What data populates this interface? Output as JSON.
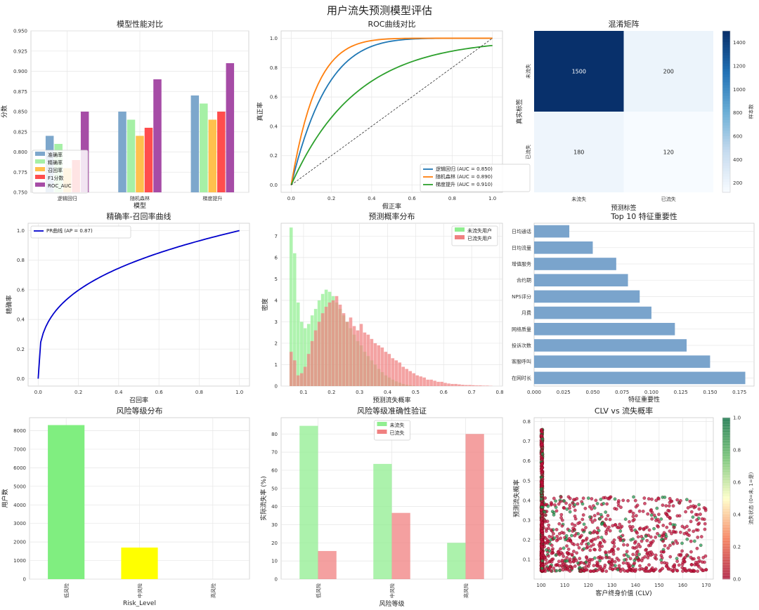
{
  "suptitle": "用户流失预测模型评估",
  "colors": {
    "lr": "#1f77b4",
    "rf": "#ff7f0e",
    "gb": "#2ca02c",
    "accuracy": "#7da7cc",
    "precision": "#a6f0a6",
    "recall": "#ffc04d",
    "f1": "#ff4d4d",
    "rocauc": "#a64ca6",
    "pr": "#0000cc",
    "hist_green": "#90ee90",
    "hist_red": "#f08080",
    "barh": "#7aa4cc",
    "cmap_low": "#f7fbff",
    "cmap_high": "#08306b"
  },
  "chart_data": [
    {
      "id": "model-performance",
      "type": "bar",
      "title": "模型性能对比",
      "xlabel": "模型",
      "ylabel": "分数",
      "categories": [
        "逻辑回归",
        "随机森林",
        "梯度提升"
      ],
      "series": [
        {
          "name": "准确率",
          "color_key": "accuracy",
          "values": [
            0.82,
            0.85,
            0.87
          ]
        },
        {
          "name": "精确率",
          "color_key": "precision",
          "values": [
            0.81,
            0.84,
            0.86
          ]
        },
        {
          "name": "召回率",
          "color_key": "recall",
          "values": [
            0.78,
            0.82,
            0.84
          ]
        },
        {
          "name": "F1分数",
          "color_key": "f1",
          "values": [
            0.79,
            0.83,
            0.85
          ]
        },
        {
          "name": "ROC_AUC",
          "color_key": "rocauc",
          "values": [
            0.85,
            0.89,
            0.91
          ]
        }
      ],
      "ylim": [
        0.75,
        0.95
      ],
      "yticks": [
        0.75,
        0.775,
        0.8,
        0.825,
        0.85,
        0.875,
        0.9,
        0.925,
        0.95
      ],
      "legend": "lower-left"
    },
    {
      "id": "roc",
      "type": "line",
      "title": "ROC曲线对比",
      "xlabel": "假正率",
      "ylabel": "真正率",
      "xlim": [
        0,
        1
      ],
      "ylim": [
        0,
        1
      ],
      "xticks": [
        0.0,
        0.2,
        0.4,
        0.6,
        0.8,
        1.0
      ],
      "yticks": [
        0.0,
        0.2,
        0.4,
        0.6,
        0.8,
        1.0
      ],
      "series": [
        {
          "name": "逻辑回归 (AUC = 0.850)",
          "color_key": "lr",
          "auc": 0.85
        },
        {
          "name": "随机森林 (AUC = 0.890)",
          "color_key": "rf",
          "auc": 0.89
        },
        {
          "name": "梯度提升 (AUC = 0.910)",
          "color_key": "gb",
          "auc": 0.91
        }
      ],
      "legend": "lower-right"
    },
    {
      "id": "confusion",
      "type": "heatmap",
      "title": "混淆矩阵",
      "xlabel": "预测标签",
      "ylabel": "真实标签",
      "x_labels": [
        "未流失",
        "已流失"
      ],
      "y_labels": [
        "未流失",
        "已流失"
      ],
      "values": [
        [
          1500,
          200
        ],
        [
          180,
          120
        ]
      ],
      "colorbar_label": "样本数",
      "colorbar_ticks": [
        200,
        400,
        600,
        800,
        1000,
        1200,
        1400
      ],
      "range": [
        120,
        1500
      ]
    },
    {
      "id": "pr-curve",
      "type": "line",
      "title": "精确率-召回率曲线",
      "xlabel": "召回率",
      "ylabel": "精确率",
      "xlim": [
        0,
        1
      ],
      "ylim": [
        0,
        1
      ],
      "xticks": [
        0.0,
        0.2,
        0.4,
        0.6,
        0.8,
        1.0
      ],
      "yticks": [
        0.0,
        0.2,
        0.4,
        0.6,
        0.8,
        1.0
      ],
      "series": [
        {
          "name": "PR曲线 (AP = 0.87)",
          "color_key": "pr"
        }
      ],
      "legend": "top-left"
    },
    {
      "id": "prob-dist",
      "type": "bar",
      "title": "预测概率分布",
      "xlabel": "预测流失概率",
      "ylabel": "密度",
      "xlim": [
        0.02,
        0.81
      ],
      "ylim": [
        0,
        7.6
      ],
      "xticks": [
        0.1,
        0.2,
        0.3,
        0.4,
        0.5,
        0.6,
        0.7,
        0.8
      ],
      "yticks": [
        0,
        1,
        2,
        3,
        4,
        5,
        6,
        7
      ],
      "bin_width": 0.0125,
      "series": [
        {
          "name": "未流失用户",
          "color_key": "hist_green",
          "start": 0.05,
          "values": [
            7.4,
            6.2,
            3.9,
            3.0,
            2.7,
            2.9,
            3.3,
            3.6,
            4.0,
            4.3,
            4.5,
            4.4,
            4.2,
            3.9,
            3.6,
            3.3,
            3.0,
            2.7,
            2.4,
            2.1,
            1.9,
            1.6,
            1.4,
            1.2,
            1.0,
            0.8,
            0.65,
            0.5,
            0.4,
            0.3,
            0.22,
            0.16,
            0.1,
            0.06,
            0.04,
            0.02
          ]
        },
        {
          "name": "已流失用户",
          "color_key": "hist_red",
          "start": 0.05,
          "values": [
            1.6,
            1.2,
            0.5,
            0.6,
            0.9,
            1.5,
            2.1,
            2.6,
            3.0,
            3.4,
            3.7,
            3.9,
            4.0,
            4.2,
            3.8,
            3.4,
            3.0,
            3.2,
            2.8,
            2.6,
            2.9,
            2.5,
            2.4,
            2.2,
            2.0,
            1.9,
            1.8,
            1.6,
            1.5,
            1.3,
            1.2,
            1.1,
            0.9,
            0.8,
            0.7,
            0.6,
            0.5,
            0.45,
            0.4,
            0.3,
            0.3,
            0.25,
            0.2,
            0.2,
            0.15,
            0.12,
            0.1,
            0.1,
            0.08,
            0.06,
            0.05,
            0.05,
            0.04,
            0.03,
            0.03,
            0.02,
            0.02,
            0.01
          ]
        }
      ],
      "legend": "top-right"
    },
    {
      "id": "feature-importance",
      "type": "barh",
      "title": "Top 10 特征重要性",
      "xlabel": "特征重要性",
      "categories": [
        "日均通话",
        "日均流量",
        "增值服务",
        "合约期",
        "NPS评分",
        "月费",
        "网络质量",
        "投诉次数",
        "客服呼叫",
        "在网时长"
      ],
      "values": [
        0.03,
        0.05,
        0.07,
        0.08,
        0.09,
        0.1,
        0.12,
        0.13,
        0.15,
        0.18
      ],
      "xlim": [
        0,
        0.1875
      ],
      "xticks": [
        0.0,
        0.025,
        0.05,
        0.075,
        0.1,
        0.125,
        0.15,
        0.175
      ]
    },
    {
      "id": "risk-distribution",
      "type": "bar",
      "title": "风险等级分布",
      "xlabel": "Risk_Level",
      "ylabel": "用户数",
      "categories": [
        "低风险",
        "中风险",
        "高风险"
      ],
      "values": [
        8300,
        1700,
        0
      ],
      "bar_colors": [
        "#80ee80",
        "#ffff00",
        "#ff6666"
      ],
      "ylim": [
        0,
        8700
      ],
      "yticks": [
        0,
        1000,
        2000,
        3000,
        4000,
        5000,
        6000,
        7000,
        8000
      ]
    },
    {
      "id": "risk-accuracy",
      "type": "bar",
      "title": "风险等级准确性验证",
      "xlabel": "风险等级",
      "ylabel": "实际流失率 (%)",
      "categories": [
        "低风险",
        "中风险",
        "高风险"
      ],
      "series": [
        {
          "name": "未流失",
          "color_key": "hist_green",
          "values": [
            84.5,
            63.5,
            20.0
          ]
        },
        {
          "name": "已流失",
          "color_key": "hist_red",
          "values": [
            15.5,
            36.5,
            80.0
          ]
        }
      ],
      "ylim": [
        0,
        89
      ],
      "yticks": [
        0,
        10,
        20,
        30,
        40,
        50,
        60,
        70,
        80
      ],
      "legend": "top-center"
    },
    {
      "id": "clv-scatter",
      "type": "scatter",
      "title": "CLV vs 流失概率",
      "xlabel": "客户终身价值 (CLV)",
      "ylabel": "预测流失概率",
      "xlim": [
        97,
        173
      ],
      "ylim": [
        0,
        0.82
      ],
      "xticks": [
        100,
        110,
        120,
        130,
        140,
        150,
        160,
        170
      ],
      "yticks": [
        0.1,
        0.2,
        0.3,
        0.4,
        0.5,
        0.6,
        0.7,
        0.8
      ],
      "n_points": 1400,
      "colorbar_label": "流失状态 (0=未, 1=是)",
      "colorbar_ticks": [
        0.0,
        0.2,
        0.4,
        0.6,
        0.8,
        1.0
      ]
    }
  ]
}
